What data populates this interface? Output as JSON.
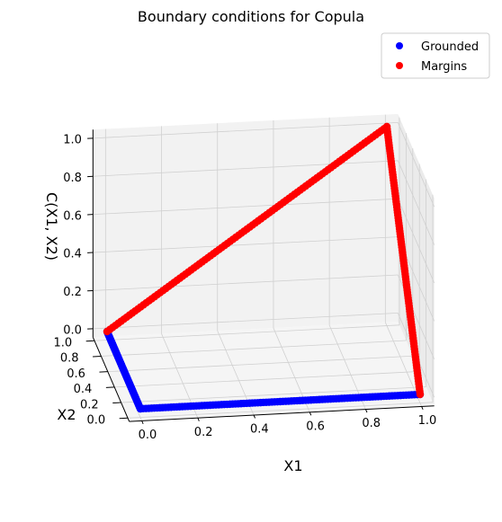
{
  "chart_data": {
    "type": "scatter",
    "projection": "3d",
    "title": "Boundary conditions for Copula",
    "xlabel": "X1",
    "ylabel": "X2",
    "zlabel": "C(X1, X2)",
    "xlim": [
      0,
      1
    ],
    "ylim": [
      0,
      1
    ],
    "zlim": [
      0,
      1
    ],
    "xticks": [
      "0.0",
      "0.2",
      "0.4",
      "0.6",
      "0.8",
      "1.0"
    ],
    "yticks": [
      "0.0",
      "0.2",
      "0.4",
      "0.6",
      "0.8",
      "1.0"
    ],
    "zticks": [
      "0.0",
      "0.2",
      "0.4",
      "0.6",
      "0.8",
      "1.0"
    ],
    "grid": true,
    "legend_position": "top-right",
    "series": [
      {
        "name": "Grounded",
        "color": "#0000ff",
        "segments": [
          {
            "from": [
              0,
              0,
              0
            ],
            "to": [
              1,
              0,
              0
            ]
          },
          {
            "from": [
              0,
              0,
              0
            ],
            "to": [
              0,
              1,
              0
            ]
          }
        ]
      },
      {
        "name": "Margins",
        "color": "#ff0000",
        "segments": [
          {
            "from": [
              1,
              0,
              0
            ],
            "to": [
              1,
              1,
              1
            ]
          },
          {
            "from": [
              0,
              1,
              0
            ],
            "to": [
              1,
              1,
              1
            ]
          }
        ]
      }
    ]
  }
}
